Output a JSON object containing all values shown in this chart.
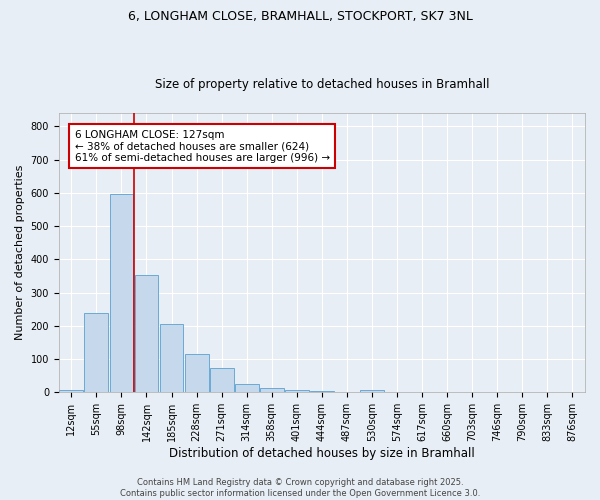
{
  "title_line1": "6, LONGHAM CLOSE, BRAMHALL, STOCKPORT, SK7 3NL",
  "title_line2": "Size of property relative to detached houses in Bramhall",
  "xlabel": "Distribution of detached houses by size in Bramhall",
  "ylabel": "Number of detached properties",
  "bar_labels": [
    "12sqm",
    "55sqm",
    "98sqm",
    "142sqm",
    "185sqm",
    "228sqm",
    "271sqm",
    "314sqm",
    "358sqm",
    "401sqm",
    "444sqm",
    "487sqm",
    "530sqm",
    "574sqm",
    "617sqm",
    "660sqm",
    "703sqm",
    "746sqm",
    "790sqm",
    "833sqm",
    "876sqm"
  ],
  "bar_values": [
    8,
    238,
    596,
    352,
    205,
    115,
    72,
    25,
    12,
    8,
    5,
    0,
    7,
    0,
    0,
    0,
    0,
    0,
    0,
    0,
    0
  ],
  "bar_color": "#c5d8ec",
  "bar_edge_color": "#6aaad4",
  "ylim": [
    0,
    840
  ],
  "yticks": [
    0,
    100,
    200,
    300,
    400,
    500,
    600,
    700,
    800
  ],
  "vline_x": 2.5,
  "vline_color": "#cc0000",
  "annotation_text": "6 LONGHAM CLOSE: 127sqm\n← 38% of detached houses are smaller (624)\n61% of semi-detached houses are larger (996) →",
  "annotation_box_color": "#ffffff",
  "annotation_box_edge": "#cc0000",
  "footer_line1": "Contains HM Land Registry data © Crown copyright and database right 2025.",
  "footer_line2": "Contains public sector information licensed under the Open Government Licence 3.0.",
  "bg_color": "#e8eef5",
  "plot_bg_color": "#e8eef5",
  "grid_color": "#ffffff",
  "title_fontsize": 9,
  "subtitle_fontsize": 8.5,
  "ylabel_fontsize": 8,
  "xlabel_fontsize": 8.5,
  "tick_fontsize": 7,
  "annot_fontsize": 7.5,
  "footer_fontsize": 6
}
